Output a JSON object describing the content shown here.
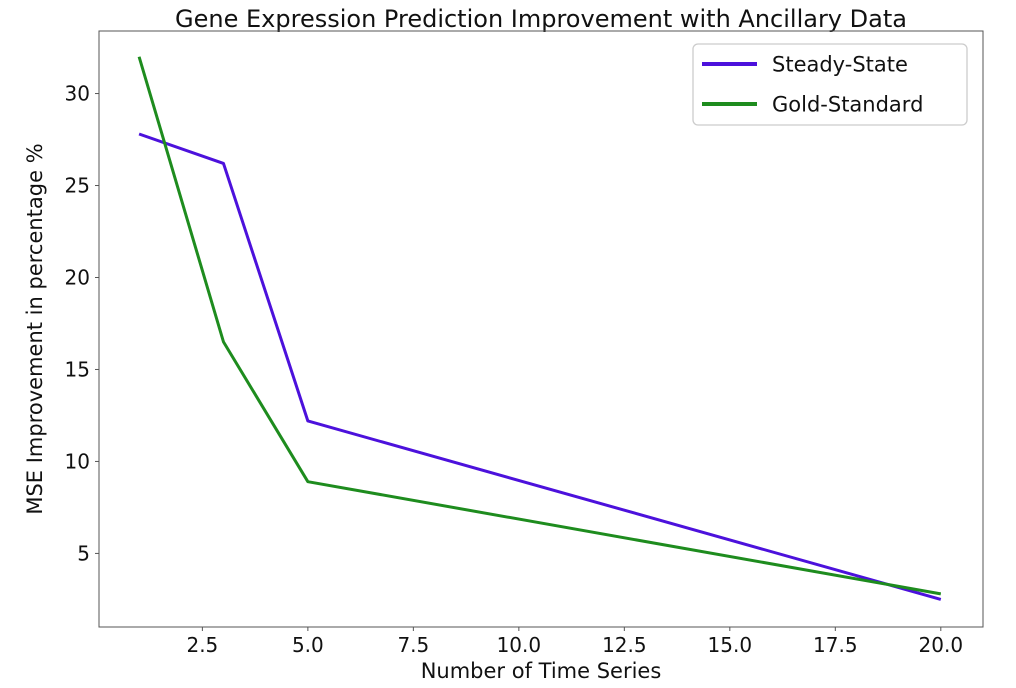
{
  "figure": {
    "background": "#ffffff"
  },
  "chart_data": {
    "type": "line",
    "title": "Gene Expression Prediction Improvement with Ancillary Data",
    "xlabel": "Number of Time Series",
    "ylabel": "MSE Improvement in percentage %",
    "x": [
      1,
      3,
      5,
      20
    ],
    "series": [
      {
        "name": "Steady-State",
        "color": "#4c11dc",
        "values": [
          27.8,
          26.2,
          12.2,
          2.5
        ]
      },
      {
        "name": "Gold-Standard",
        "color": "#1e8c1e",
        "values": [
          32.0,
          16.5,
          8.9,
          2.8
        ]
      }
    ],
    "xlim": [
      0.05,
      21.0
    ],
    "ylim": [
      1.0,
      33.4
    ],
    "xticks": [
      2.5,
      5.0,
      7.5,
      10.0,
      12.5,
      15.0,
      17.5,
      20.0
    ],
    "xtick_labels": [
      "2.5",
      "5.0",
      "7.5",
      "10.0",
      "12.5",
      "15.0",
      "17.5",
      "20.0"
    ],
    "yticks": [
      5,
      10,
      15,
      20,
      25,
      30
    ],
    "ytick_labels": [
      "5",
      "10",
      "15",
      "20",
      "25",
      "30"
    ],
    "grid": false,
    "legend_position": "upper right",
    "line_width": 3,
    "colors": {
      "spine": "#555555",
      "tick": "#555555",
      "text": "#111111",
      "legend_border": "#cccccc",
      "legend_fill": "#ffffff"
    }
  }
}
